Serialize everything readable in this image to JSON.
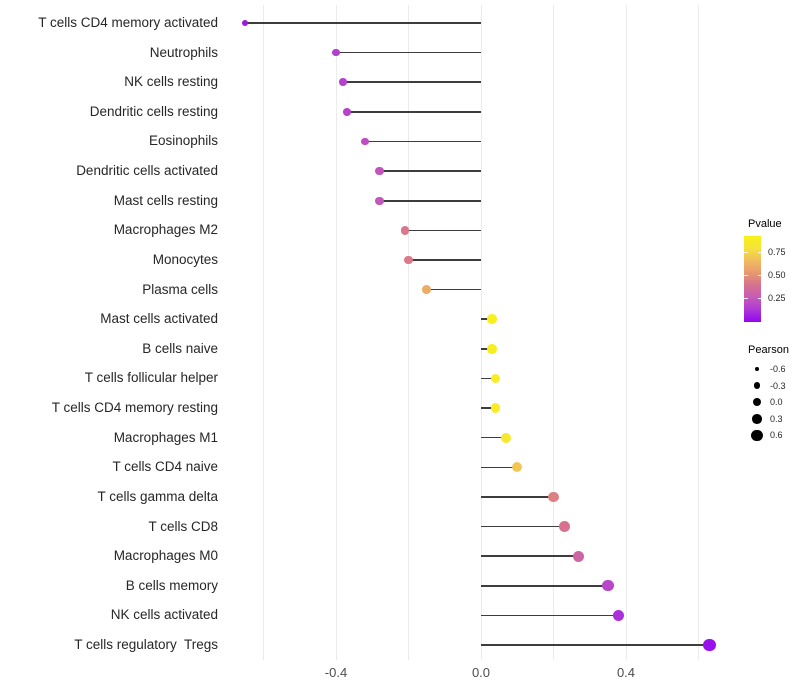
{
  "chart_data": {
    "type": "lollipop",
    "title": "",
    "xlabel": "",
    "ylabel": "",
    "xlim": [
      -0.69,
      0.7
    ],
    "grid": "vertical-only",
    "legend_position": "right",
    "x_ticks": [
      {
        "label": "-0.4",
        "value": -0.4
      },
      {
        "label": "0.0",
        "value": 0.0
      },
      {
        "label": "0.4",
        "value": 0.4
      }
    ],
    "grid_values": [
      -0.6,
      -0.4,
      -0.2,
      0.0,
      0.2,
      0.4,
      0.6
    ],
    "rows": [
      {
        "label": "T cells CD4 memory activated",
        "pearson": -0.65,
        "pvalue": 0.05
      },
      {
        "label": "Neutrophils",
        "pearson": -0.4,
        "pvalue": 0.17
      },
      {
        "label": "NK cells resting",
        "pearson": -0.38,
        "pvalue": 0.18
      },
      {
        "label": "Dendritic cells resting",
        "pearson": -0.37,
        "pvalue": 0.19
      },
      {
        "label": "Eosinophils",
        "pearson": -0.32,
        "pvalue": 0.23
      },
      {
        "label": "Dendritic cells activated",
        "pearson": -0.28,
        "pvalue": 0.26
      },
      {
        "label": "Mast cells resting",
        "pearson": -0.28,
        "pvalue": 0.27
      },
      {
        "label": "Macrophages M2",
        "pearson": -0.21,
        "pvalue": 0.45
      },
      {
        "label": "Monocytes",
        "pearson": -0.2,
        "pvalue": 0.46
      },
      {
        "label": "Plasma cells",
        "pearson": -0.15,
        "pvalue": 0.65
      },
      {
        "label": "Mast cells activated",
        "pearson": 0.03,
        "pvalue": 0.97
      },
      {
        "label": "B cells naive",
        "pearson": 0.03,
        "pvalue": 0.96
      },
      {
        "label": "T cells follicular helper",
        "pearson": 0.04,
        "pvalue": 0.95
      },
      {
        "label": "T cells CD4 memory resting",
        "pearson": 0.04,
        "pvalue": 0.94
      },
      {
        "label": "Macrophages M1",
        "pearson": 0.07,
        "pvalue": 0.9
      },
      {
        "label": "T cells CD4 naive",
        "pearson": 0.1,
        "pvalue": 0.75
      },
      {
        "label": "T cells gamma delta",
        "pearson": 0.2,
        "pvalue": 0.48
      },
      {
        "label": "T cells CD8",
        "pearson": 0.23,
        "pvalue": 0.43
      },
      {
        "label": "Macrophages M0",
        "pearson": 0.27,
        "pvalue": 0.35
      },
      {
        "label": "B cells memory",
        "pearson": 0.35,
        "pvalue": 0.2
      },
      {
        "label": "NK cells activated",
        "pearson": 0.38,
        "pvalue": 0.12
      },
      {
        "label": "T cells regulatory  Tregs",
        "pearson": 0.63,
        "pvalue": 0.03
      }
    ]
  },
  "legend_pvalue": {
    "title": "Pvalue",
    "tick_labels": [
      "0.75",
      "0.50",
      "0.25"
    ],
    "gradient_bottom_to_top": [
      "#9306f2",
      "#ae38d5",
      "#c55bb7",
      "#d7718f",
      "#e8996f",
      "#f0bc5e",
      "#f5e33c",
      "#f8f216"
    ]
  },
  "legend_pearson": {
    "title": "Pearson",
    "entries": [
      {
        "label": "-0.6",
        "value": -0.6
      },
      {
        "label": "-0.3",
        "value": -0.3
      },
      {
        "label": "0.0",
        "value": 0.0
      },
      {
        "label": "0.3",
        "value": 0.3
      },
      {
        "label": "0.6",
        "value": 0.6
      }
    ]
  },
  "colors": {
    "stem": "#3d3d3d",
    "gridline": "#ebebeb",
    "axis_text": "#4d4d4d",
    "label_text": "#262626",
    "background": "#ffffff",
    "legend_dot": "#000000"
  }
}
